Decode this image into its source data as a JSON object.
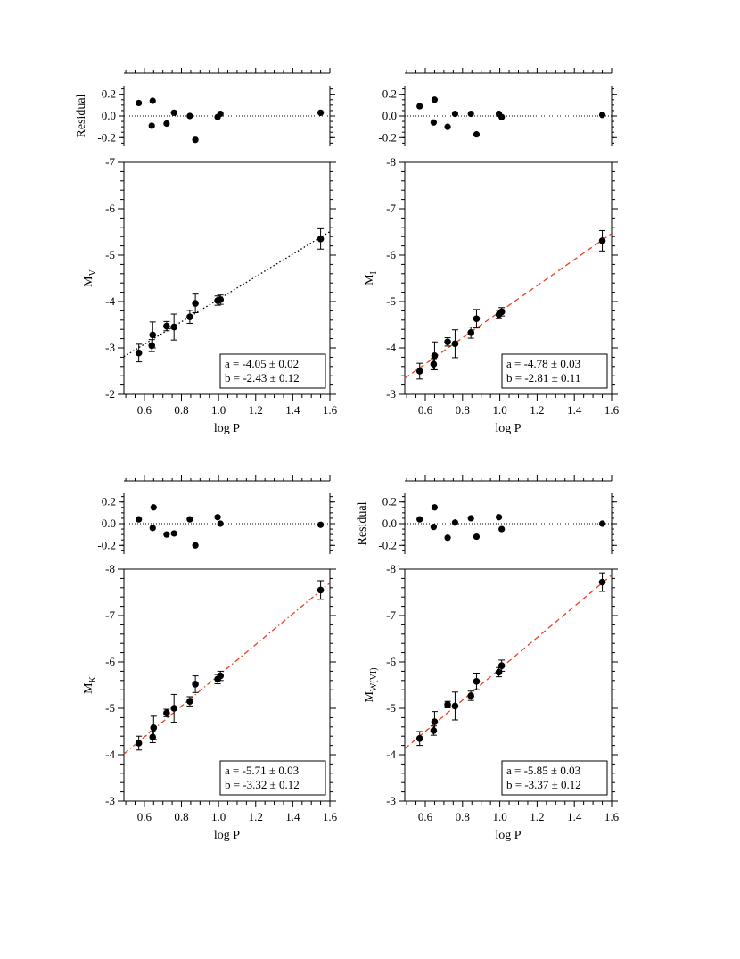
{
  "figure": {
    "xlabel": "log P",
    "x_ticks": [
      0.6,
      0.8,
      1.0,
      1.2,
      1.4,
      1.6
    ],
    "residual_ticks": [
      0.2,
      0.0,
      -0.2
    ],
    "residual_ylim": [
      -0.28,
      0.28
    ],
    "xlim": [
      0.49,
      1.6
    ],
    "point_color": "#000000"
  },
  "chart_data": [
    {
      "type": "scatter",
      "panel": "top-left",
      "ylabel_main": "M",
      "ylabel_sub": "V",
      "residual_label": "Residual",
      "ylim": [
        -2,
        -7
      ],
      "y_ticks": [
        -2,
        -3,
        -4,
        -5,
        -6,
        -7
      ],
      "fit": {
        "a": -4.05,
        "b": -2.43,
        "style": "dotted",
        "color": "#000000"
      },
      "legend_lines": [
        "a  =  -4.05 ± 0.02",
        "b  =  -2.43 ± 0.12"
      ],
      "points": [
        {
          "x": 0.57,
          "y": -2.89,
          "err": 0.19
        },
        {
          "x": 0.64,
          "y": -3.05,
          "err": 0.13
        },
        {
          "x": 0.645,
          "y": -3.28,
          "err": 0.28
        },
        {
          "x": 0.72,
          "y": -3.47,
          "err": 0.1
        },
        {
          "x": 0.76,
          "y": -3.45,
          "err": 0.28
        },
        {
          "x": 0.845,
          "y": -3.67,
          "err": 0.14
        },
        {
          "x": 0.875,
          "y": -3.96,
          "err": 0.2
        },
        {
          "x": 0.995,
          "y": -4.02,
          "err": 0.1
        },
        {
          "x": 1.01,
          "y": -4.04,
          "err": 0.1
        },
        {
          "x": 1.55,
          "y": -5.35,
          "err": 0.22
        }
      ],
      "residuals": [
        {
          "x": 0.57,
          "y": 0.12
        },
        {
          "x": 0.64,
          "y": -0.09
        },
        {
          "x": 0.645,
          "y": 0.14
        },
        {
          "x": 0.72,
          "y": -0.07
        },
        {
          "x": 0.76,
          "y": 0.03
        },
        {
          "x": 0.845,
          "y": 0.0
        },
        {
          "x": 0.875,
          "y": -0.22
        },
        {
          "x": 0.995,
          "y": -0.01
        },
        {
          "x": 1.01,
          "y": 0.02
        },
        {
          "x": 1.55,
          "y": 0.03
        }
      ]
    },
    {
      "type": "scatter",
      "panel": "top-right",
      "ylabel_main": "M",
      "ylabel_sub": "I",
      "residual_label": "",
      "ylim": [
        -3,
        -8
      ],
      "y_ticks": [
        -3,
        -4,
        -5,
        -6,
        -7,
        -8
      ],
      "fit": {
        "a": -4.78,
        "b": -2.81,
        "style": "dashed",
        "color": "#e8411f"
      },
      "legend_lines": [
        "a  =  -4.78 ± 0.03",
        "b  =  -2.81 ± 0.11"
      ],
      "points": [
        {
          "x": 0.57,
          "y": -3.5,
          "err": 0.17
        },
        {
          "x": 0.645,
          "y": -3.65,
          "err": 0.12
        },
        {
          "x": 0.65,
          "y": -3.83,
          "err": 0.3
        },
        {
          "x": 0.72,
          "y": -4.13,
          "err": 0.09
        },
        {
          "x": 0.76,
          "y": -4.09,
          "err": 0.3
        },
        {
          "x": 0.845,
          "y": -4.33,
          "err": 0.12
        },
        {
          "x": 0.875,
          "y": -4.63,
          "err": 0.2
        },
        {
          "x": 0.995,
          "y": -4.72,
          "err": 0.09
        },
        {
          "x": 1.01,
          "y": -4.78,
          "err": 0.09
        },
        {
          "x": 1.55,
          "y": -6.31,
          "err": 0.22
        }
      ],
      "residuals": [
        {
          "x": 0.57,
          "y": 0.09
        },
        {
          "x": 0.645,
          "y": -0.06
        },
        {
          "x": 0.65,
          "y": 0.15
        },
        {
          "x": 0.72,
          "y": -0.1
        },
        {
          "x": 0.76,
          "y": 0.02
        },
        {
          "x": 0.845,
          "y": 0.02
        },
        {
          "x": 0.875,
          "y": -0.17
        },
        {
          "x": 0.995,
          "y": 0.02
        },
        {
          "x": 1.01,
          "y": -0.01
        },
        {
          "x": 1.55,
          "y": 0.01
        }
      ]
    },
    {
      "type": "scatter",
      "panel": "bottom-left",
      "ylabel_main": "M",
      "ylabel_sub": "K",
      "residual_label": "",
      "ylim": [
        -3,
        -8
      ],
      "y_ticks": [
        -3,
        -4,
        -5,
        -6,
        -7,
        -8
      ],
      "fit": {
        "a": -5.71,
        "b": -3.32,
        "style": "dashdot",
        "color": "#e8411f"
      },
      "legend_lines": [
        "a  =  -5.71 ± 0.03",
        "b  =  -3.32 ± 0.12"
      ],
      "points": [
        {
          "x": 0.57,
          "y": -4.25,
          "err": 0.15
        },
        {
          "x": 0.645,
          "y": -4.38,
          "err": 0.12
        },
        {
          "x": 0.65,
          "y": -4.58,
          "err": 0.25
        },
        {
          "x": 0.72,
          "y": -4.9,
          "err": 0.08
        },
        {
          "x": 0.76,
          "y": -5.0,
          "err": 0.3
        },
        {
          "x": 0.845,
          "y": -5.15,
          "err": 0.1
        },
        {
          "x": 0.875,
          "y": -5.52,
          "err": 0.18
        },
        {
          "x": 0.995,
          "y": -5.63,
          "err": 0.1
        },
        {
          "x": 1.01,
          "y": -5.7,
          "err": 0.1
        },
        {
          "x": 1.55,
          "y": -7.55,
          "err": 0.2
        }
      ],
      "residuals": [
        {
          "x": 0.57,
          "y": 0.04
        },
        {
          "x": 0.645,
          "y": -0.04
        },
        {
          "x": 0.65,
          "y": 0.15
        },
        {
          "x": 0.72,
          "y": -0.1
        },
        {
          "x": 0.76,
          "y": -0.09
        },
        {
          "x": 0.845,
          "y": 0.04
        },
        {
          "x": 0.875,
          "y": -0.2
        },
        {
          "x": 0.995,
          "y": 0.06
        },
        {
          "x": 1.01,
          "y": 0.0
        },
        {
          "x": 1.55,
          "y": -0.01
        }
      ]
    },
    {
      "type": "scatter",
      "panel": "bottom-right",
      "ylabel_main": "M",
      "ylabel_sub": "W(VI)",
      "residual_label": "Residual",
      "ylim": [
        -3,
        -8
      ],
      "y_ticks": [
        -3,
        -4,
        -5,
        -6,
        -7,
        -8
      ],
      "fit": {
        "a": -5.85,
        "b": -3.37,
        "style": "dashed",
        "color": "#e8411f"
      },
      "legend_lines": [
        "a  =  -5.85 ± 0.03",
        "b  =  -3.37 ± 0.12"
      ],
      "points": [
        {
          "x": 0.57,
          "y": -4.35,
          "err": 0.15
        },
        {
          "x": 0.645,
          "y": -4.52,
          "err": 0.1
        },
        {
          "x": 0.65,
          "y": -4.71,
          "err": 0.22
        },
        {
          "x": 0.72,
          "y": -5.08,
          "err": 0.07
        },
        {
          "x": 0.76,
          "y": -5.05,
          "err": 0.3
        },
        {
          "x": 0.845,
          "y": -5.27,
          "err": 0.1
        },
        {
          "x": 0.875,
          "y": -5.58,
          "err": 0.18
        },
        {
          "x": 0.995,
          "y": -5.78,
          "err": 0.1
        },
        {
          "x": 1.01,
          "y": -5.92,
          "err": 0.12
        },
        {
          "x": 1.55,
          "y": -7.72,
          "err": 0.2
        }
      ],
      "residuals": [
        {
          "x": 0.57,
          "y": 0.04
        },
        {
          "x": 0.645,
          "y": -0.03
        },
        {
          "x": 0.65,
          "y": 0.15
        },
        {
          "x": 0.72,
          "y": -0.13
        },
        {
          "x": 0.76,
          "y": 0.01
        },
        {
          "x": 0.845,
          "y": 0.05
        },
        {
          "x": 0.875,
          "y": -0.12
        },
        {
          "x": 0.995,
          "y": 0.06
        },
        {
          "x": 1.01,
          "y": -0.05
        },
        {
          "x": 1.55,
          "y": 0.0
        }
      ]
    }
  ]
}
